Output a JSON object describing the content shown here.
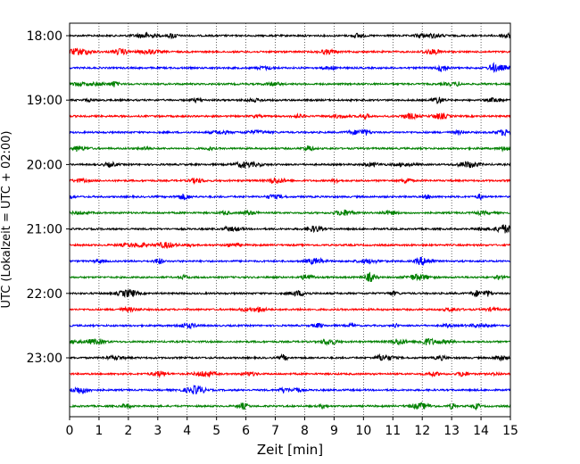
{
  "chart_data": {
    "type": "line",
    "title": "",
    "xlabel": "Zeit  [min]",
    "ylabel": "UTC (Lokalzeit = UTC + 02:00)",
    "xlim": [
      0,
      15
    ],
    "x_ticks": [
      "0",
      "1",
      "2",
      "3",
      "4",
      "5",
      "6",
      "7",
      "8",
      "9",
      "10",
      "11",
      "12",
      "13",
      "14",
      "15"
    ],
    "y_ticks": [
      "18:00",
      "19:00",
      "20:00",
      "21:00",
      "22:00",
      "23:00"
    ],
    "grid": "vertical dotted",
    "trace_colors": [
      "#000000",
      "#ff0000",
      "#0000ff",
      "#008000"
    ],
    "rows": [
      {
        "start": "18:00",
        "color": "#000000"
      },
      {
        "start": "18:15",
        "color": "#ff0000"
      },
      {
        "start": "18:30",
        "color": "#0000ff"
      },
      {
        "start": "18:45",
        "color": "#008000"
      },
      {
        "start": "19:00",
        "color": "#000000"
      },
      {
        "start": "19:15",
        "color": "#ff0000"
      },
      {
        "start": "19:30",
        "color": "#0000ff"
      },
      {
        "start": "19:45",
        "color": "#008000"
      },
      {
        "start": "20:00",
        "color": "#000000"
      },
      {
        "start": "20:15",
        "color": "#ff0000"
      },
      {
        "start": "20:30",
        "color": "#0000ff"
      },
      {
        "start": "20:45",
        "color": "#008000"
      },
      {
        "start": "21:00",
        "color": "#000000"
      },
      {
        "start": "21:15",
        "color": "#ff0000"
      },
      {
        "start": "21:30",
        "color": "#0000ff"
      },
      {
        "start": "21:45",
        "color": "#008000"
      },
      {
        "start": "22:00",
        "color": "#000000"
      },
      {
        "start": "22:15",
        "color": "#ff0000"
      },
      {
        "start": "22:30",
        "color": "#0000ff"
      },
      {
        "start": "22:45",
        "color": "#008000"
      },
      {
        "start": "23:00",
        "color": "#000000"
      },
      {
        "start": "23:15",
        "color": "#ff0000"
      },
      {
        "start": "23:30",
        "color": "#0000ff"
      },
      {
        "start": "23:45",
        "color": "#008000"
      }
    ]
  }
}
